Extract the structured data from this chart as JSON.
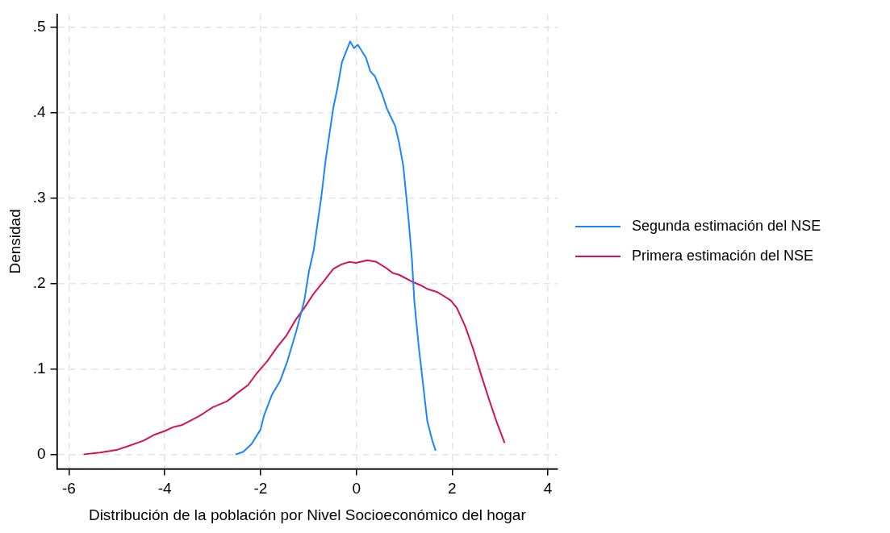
{
  "chart_data": {
    "type": "line",
    "xlabel": "Distribución de la población por Nivel Socioeconómico del hogar",
    "ylabel": "Densidad",
    "xlim": [
      -6.25,
      4.2
    ],
    "xticks": [
      -6,
      -4,
      -2,
      0,
      2,
      4
    ],
    "ylim": [
      -0.017,
      0.515
    ],
    "yticks": [
      {
        "value": 0,
        "label": "0"
      },
      {
        "value": 0.1,
        "label": ".1"
      },
      {
        "value": 0.2,
        "label": ".2"
      },
      {
        "value": 0.3,
        "label": ".3"
      },
      {
        "value": 0.4,
        "label": ".4"
      },
      {
        "value": 0.5,
        "label": ".5"
      }
    ],
    "grid": true,
    "legend": "right",
    "marker": "none",
    "line_style": "solid",
    "series": [
      {
        "name": "Segunda estimación del NSE",
        "color": "#1a85ff",
        "x": [
          -2.51,
          -2.36,
          -2.19,
          -2.0,
          -1.93,
          -1.76,
          -1.59,
          -1.44,
          -1.26,
          -1.09,
          -0.99,
          -0.89,
          -0.73,
          -0.64,
          -0.48,
          -0.4,
          -0.3,
          -0.13,
          -0.05,
          0.03,
          0.2,
          0.29,
          0.39,
          0.54,
          0.64,
          0.81,
          0.89,
          0.98,
          1.09,
          1.16,
          1.21,
          1.3,
          1.4,
          1.48,
          1.58,
          1.65
        ],
        "values": [
          0,
          0.003,
          0.012,
          0.029,
          0.045,
          0.07,
          0.086,
          0.109,
          0.143,
          0.179,
          0.214,
          0.239,
          0.302,
          0.345,
          0.406,
          0.427,
          0.459,
          0.483,
          0.475,
          0.479,
          0.464,
          0.448,
          0.442,
          0.421,
          0.404,
          0.384,
          0.365,
          0.337,
          0.274,
          0.228,
          0.179,
          0.127,
          0.078,
          0.039,
          0.017,
          0.005
        ]
      },
      {
        "name": "Primera estimación del NSE",
        "color": "#d41159",
        "x": [
          -5.68,
          -5.35,
          -5.01,
          -4.74,
          -4.44,
          -4.21,
          -4.01,
          -3.81,
          -3.65,
          -3.27,
          -3.0,
          -2.7,
          -2.5,
          -2.26,
          -2.09,
          -1.86,
          -1.66,
          -1.46,
          -1.26,
          -1.09,
          -0.89,
          -0.66,
          -0.48,
          -0.32,
          -0.15,
          -0.01,
          0.23,
          0.42,
          0.62,
          0.76,
          0.89,
          1.16,
          1.33,
          1.5,
          1.68,
          1.83,
          1.97,
          2.1,
          2.27,
          2.44,
          2.61,
          2.77,
          2.94,
          3.09
        ],
        "values": [
          0,
          0.002,
          0.005,
          0.01,
          0.016,
          0.023,
          0.027,
          0.032,
          0.034,
          0.045,
          0.055,
          0.062,
          0.071,
          0.081,
          0.094,
          0.109,
          0.125,
          0.139,
          0.158,
          0.171,
          0.188,
          0.204,
          0.217,
          0.222,
          0.225,
          0.224,
          0.227,
          0.225,
          0.218,
          0.212,
          0.21,
          0.202,
          0.198,
          0.193,
          0.19,
          0.185,
          0.18,
          0.171,
          0.15,
          0.123,
          0.092,
          0.064,
          0.036,
          0.014
        ]
      }
    ]
  }
}
